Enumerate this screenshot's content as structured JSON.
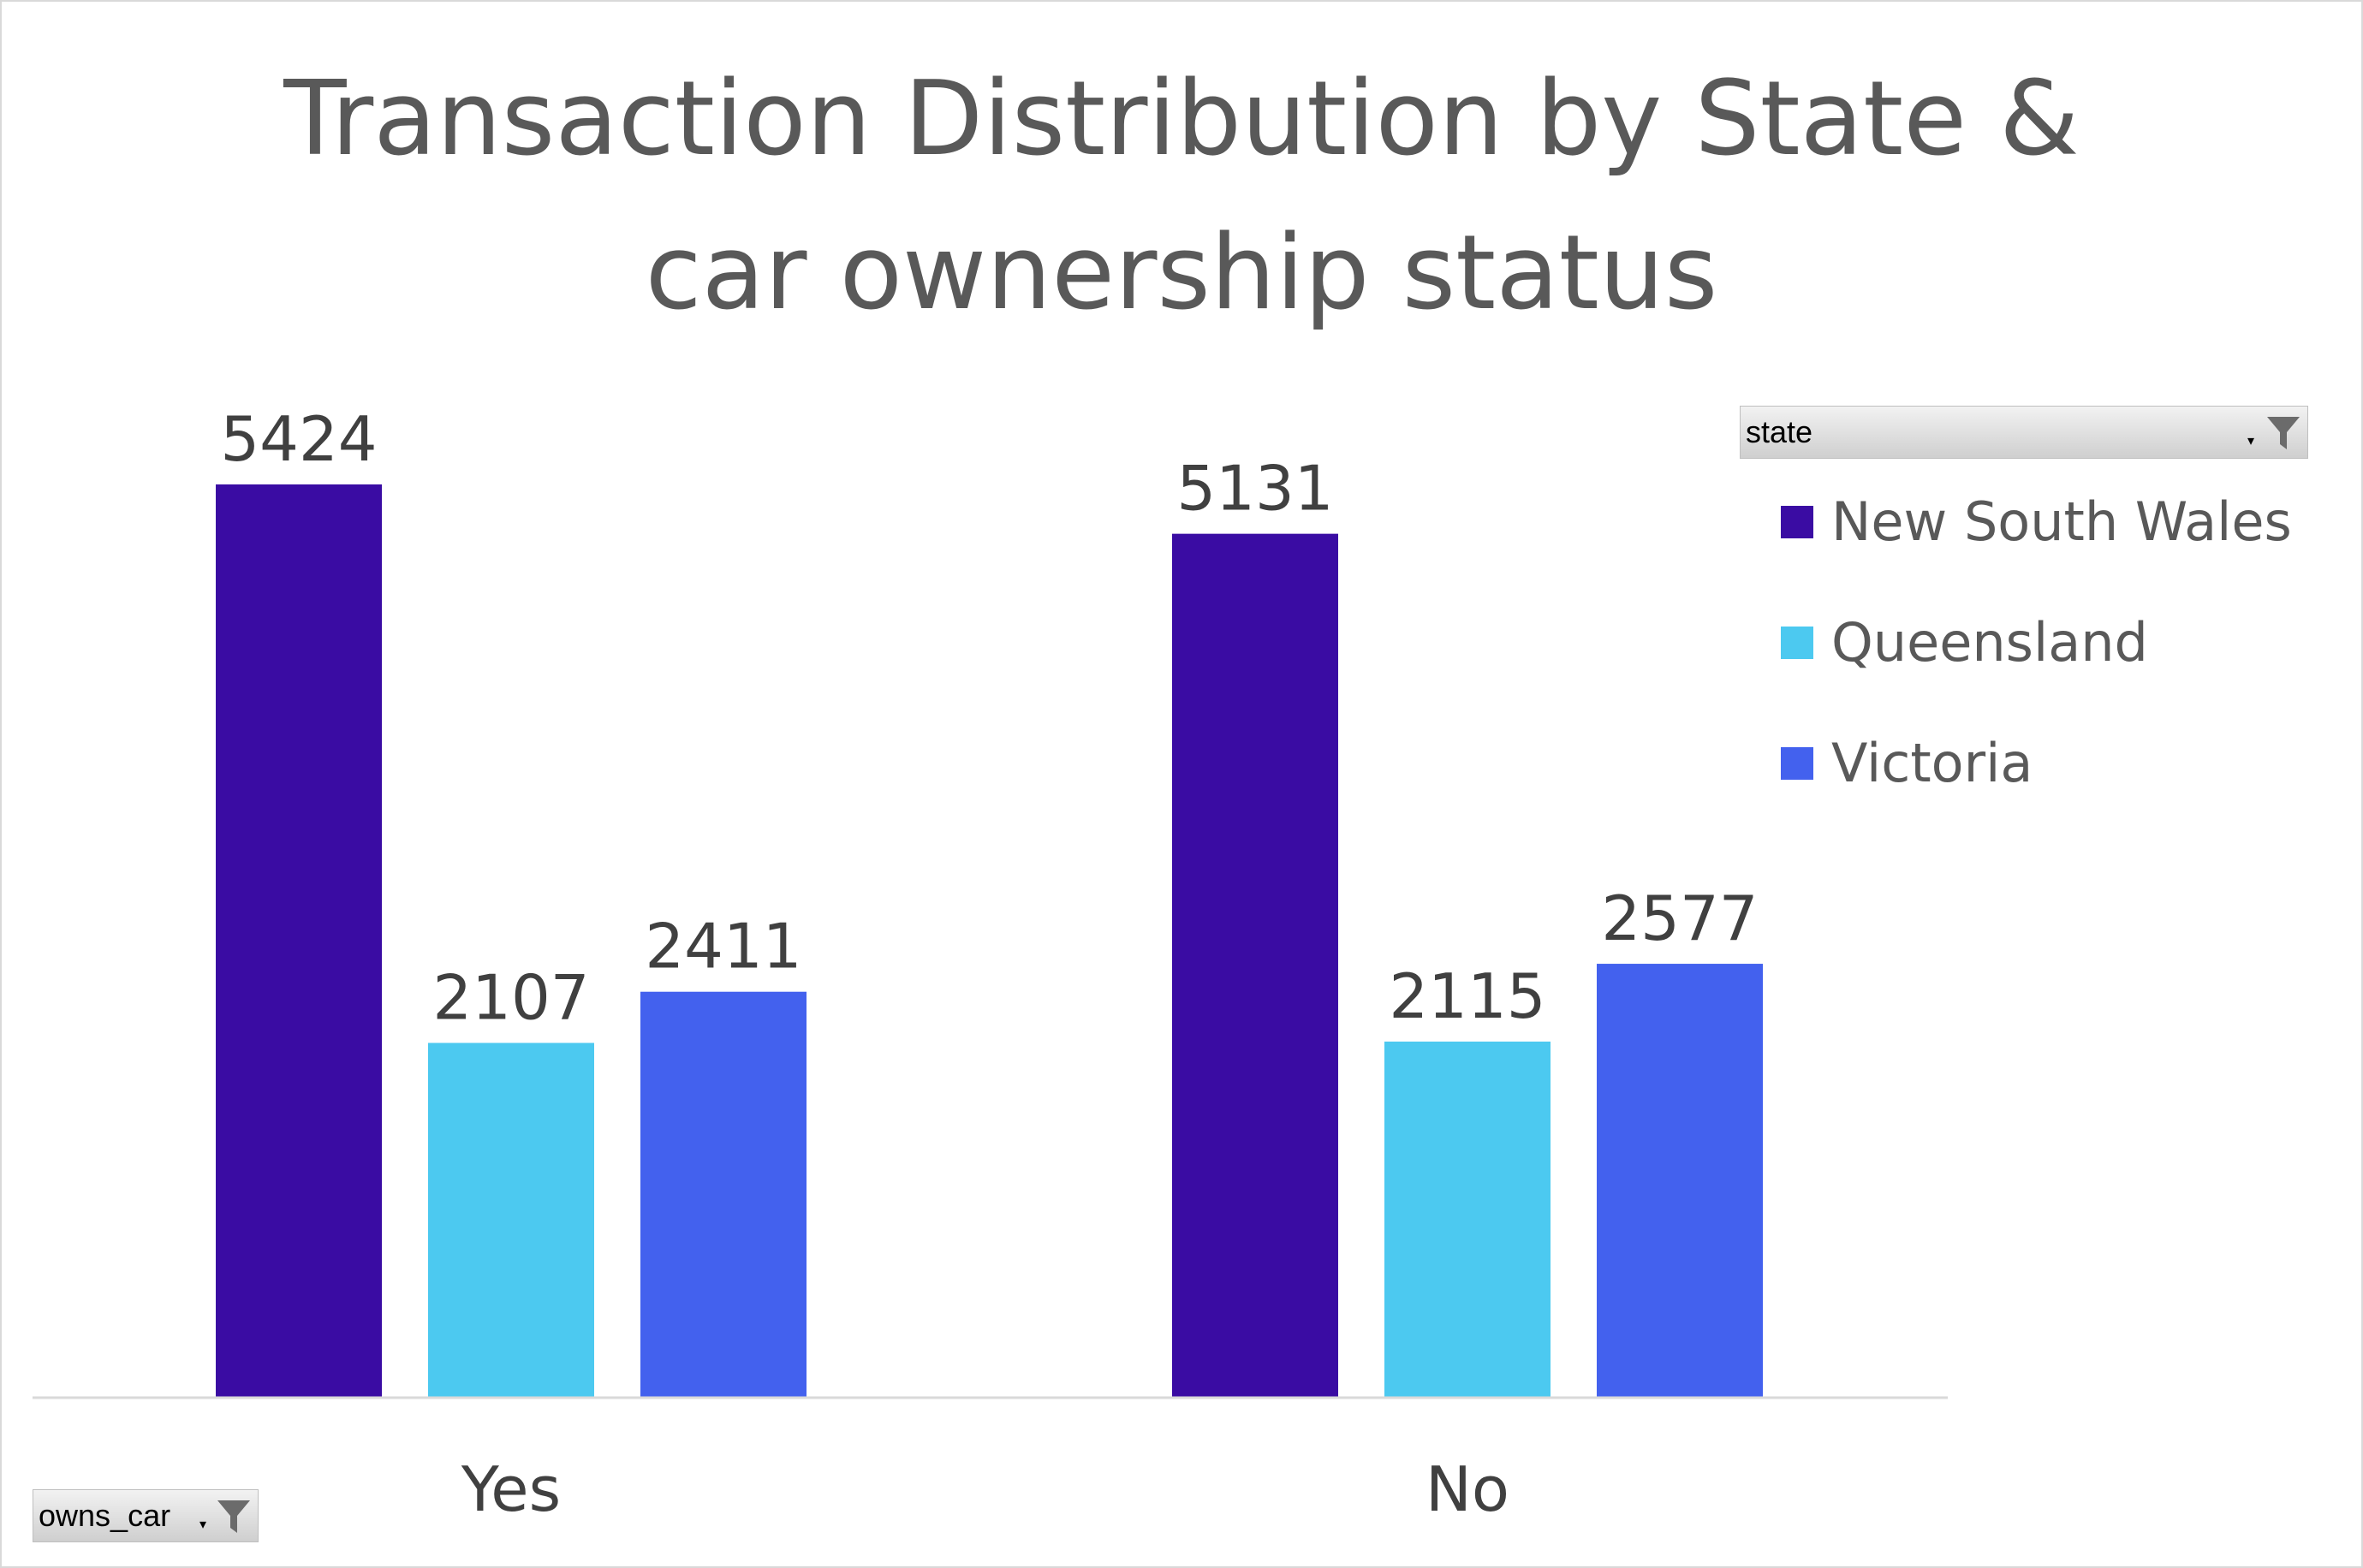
{
  "chart_data": {
    "type": "bar",
    "title": "Transaction Distribution by State & car ownership status",
    "categories": [
      "Yes",
      "No"
    ],
    "series": [
      {
        "name": "New South Wales",
        "values": [
          5424,
          5131
        ],
        "color": "#3A0CA3"
      },
      {
        "name": "Queensland",
        "values": [
          2107,
          2115
        ],
        "color": "#4CC9F0"
      },
      {
        "name": "Victoria",
        "values": [
          2411,
          2577
        ],
        "color": "#4361EE"
      }
    ],
    "ylim": [
      0,
      5424
    ],
    "grid": false,
    "legend_placement": "right"
  },
  "filters": {
    "legend_field": "state",
    "axis_field": "owns_car",
    "funnel_icon": "filter-funnel-icon",
    "dropdown_icon": "dropdown-arrow-icon"
  }
}
